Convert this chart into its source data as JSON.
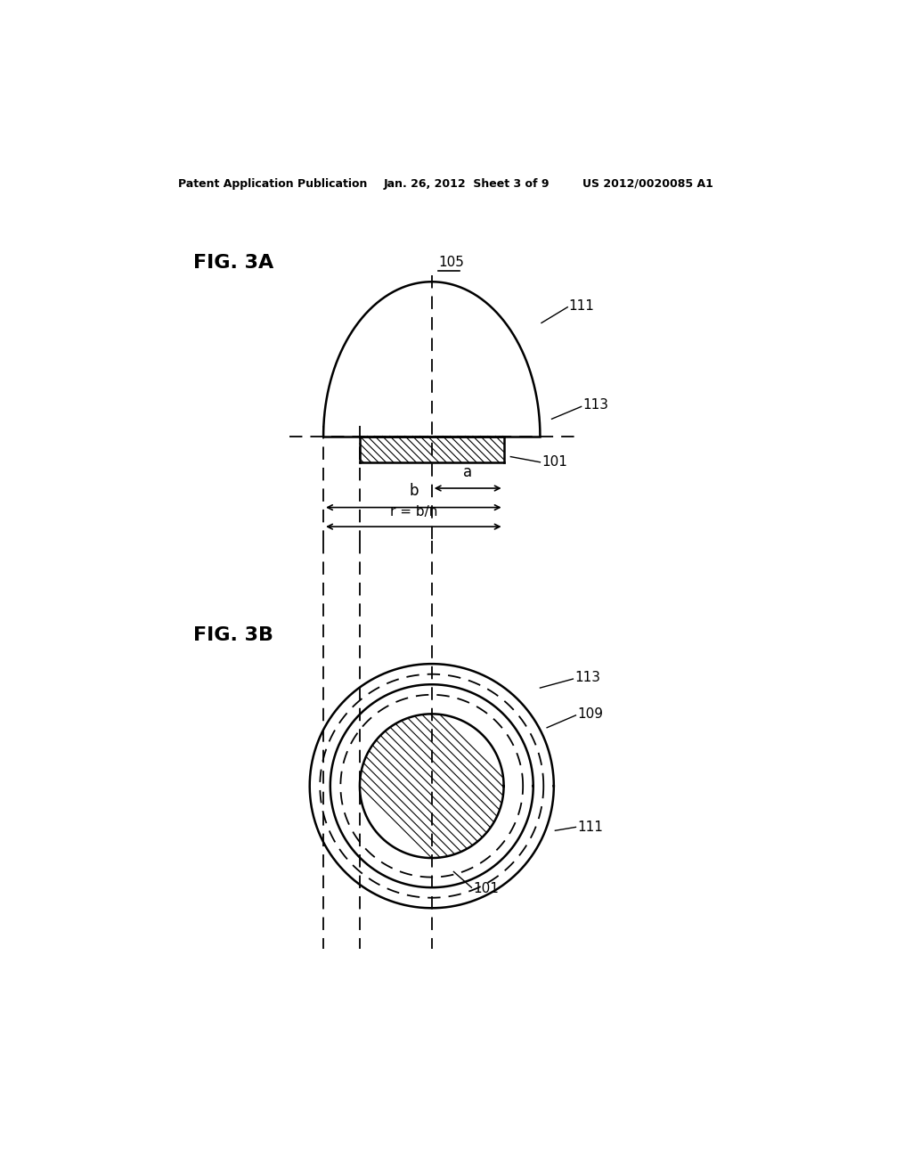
{
  "background_color": "#ffffff",
  "header_left": "Patent Application Publication",
  "header_mid": "Jan. 26, 2012  Sheet 3 of 9",
  "header_right": "US 2012/0020085 A1",
  "fig3a_label": "FIG. 3A",
  "fig3b_label": "FIG. 3B",
  "label_105": "105",
  "label_111_3a": "111",
  "label_113_3a": "113",
  "label_101_3a": "101",
  "label_a": "a",
  "label_b": "b",
  "label_r": "r = b/n",
  "label_113_3b": "113",
  "label_109": "109",
  "label_111_3b": "111",
  "label_101_3b": "101",
  "line_color": "#000000"
}
